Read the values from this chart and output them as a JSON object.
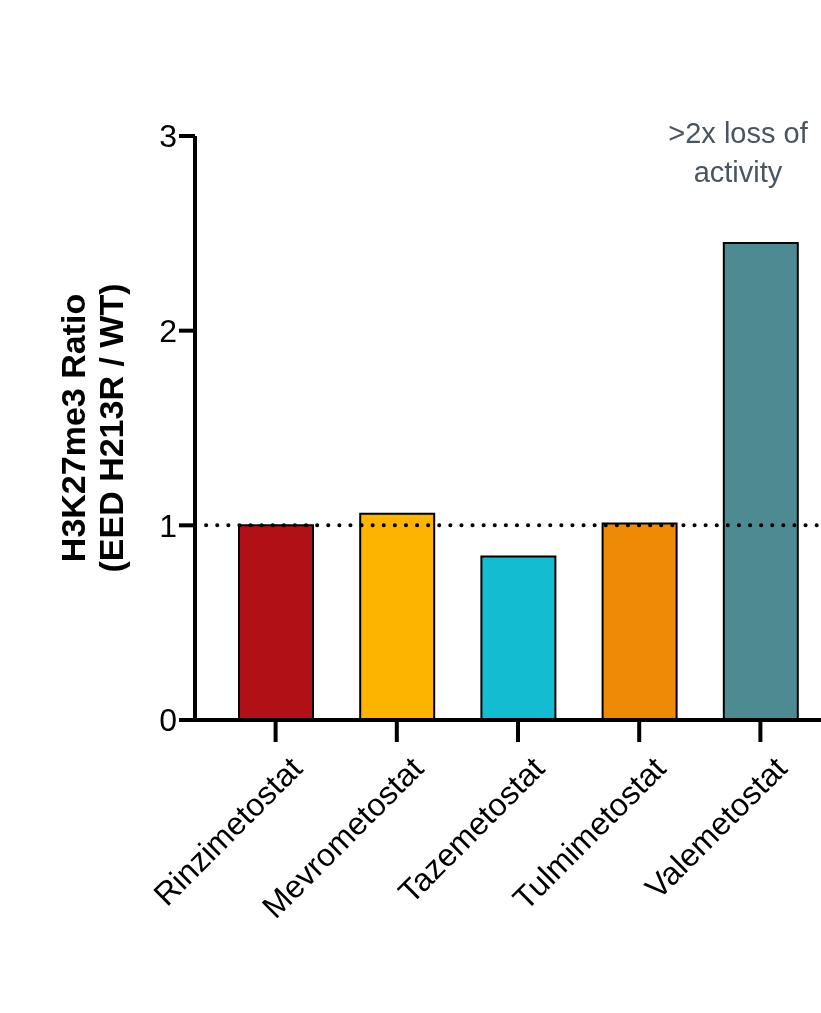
{
  "chart_data": {
    "type": "bar",
    "ylabel": "H3K27me3 Ratio\n(EED H213R / WT)",
    "categories": [
      "Rinzimetostat",
      "Mevrometostat",
      "Tazemetostat",
      "Tulmimetostat",
      "Valemetostat"
    ],
    "values": [
      1.0,
      1.06,
      0.84,
      1.01,
      2.45
    ],
    "colors": [
      "#b01016",
      "#fdb400",
      "#13bcd0",
      "#ef8a06",
      "#4e8a91"
    ],
    "ylim": [
      0,
      3
    ],
    "yticks": [
      0,
      1,
      2,
      3
    ],
    "ref_lines": [
      {
        "axis": "y",
        "value": 1,
        "line_style": "dotted",
        "color": "#000000"
      }
    ],
    "annotations": [
      ">2x loss of activity"
    ]
  }
}
